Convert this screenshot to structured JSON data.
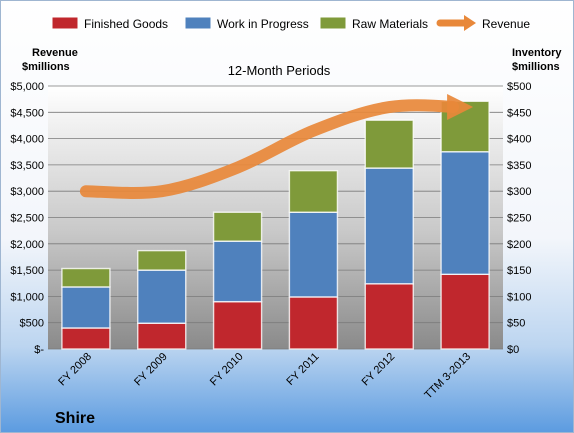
{
  "chart_data": {
    "type": "bar",
    "stacked": true,
    "title": "12-Month Periods",
    "company": "Shire",
    "categories": [
      "FY 2008",
      "FY 2009",
      "FY 2010",
      "FY 2011",
      "FY 2012",
      "TTM 3-2013"
    ],
    "series": [
      {
        "name": "Finished Goods",
        "axis": "right",
        "values": [
          40,
          49,
          90,
          99,
          124,
          142
        ],
        "color": "#c0272d"
      },
      {
        "name": "Work in Progress",
        "axis": "right",
        "values": [
          78,
          101,
          115,
          161,
          220,
          233
        ],
        "color": "#4f81bd"
      },
      {
        "name": "Raw Materials",
        "axis": "right",
        "values": [
          35,
          37,
          55,
          79,
          91,
          96
        ],
        "color": "#7f9a3a"
      },
      {
        "name": "Revenue",
        "axis": "left",
        "type": "line",
        "values": [
          3000,
          3000,
          3450,
          4150,
          4600,
          4600
        ],
        "color": "#e8883a"
      }
    ],
    "left_axis": {
      "title_line1": "Revenue",
      "title_line2": "$millions",
      "ylim": [
        0,
        5000
      ],
      "ticks": [
        0,
        500,
        1000,
        1500,
        2000,
        2500,
        3000,
        3500,
        4000,
        4500,
        5000
      ],
      "tick_labels": [
        "$-",
        "$500",
        "$1,000",
        "$1,500",
        "$2,000",
        "$2,500",
        "$3,000",
        "$3,500",
        "$4,000",
        "$4,500",
        "$5,000"
      ]
    },
    "right_axis": {
      "title_line1": "Inventory",
      "title_line2": "$millions",
      "ylim": [
        0,
        500
      ],
      "ticks": [
        0,
        50,
        100,
        150,
        200,
        250,
        300,
        350,
        400,
        450,
        500
      ],
      "tick_labels": [
        "$0",
        "$50",
        "$100",
        "$150",
        "$200",
        "$250",
        "$300",
        "$350",
        "$400",
        "$450",
        "$500"
      ]
    },
    "grid": true,
    "legend_position": "top"
  }
}
